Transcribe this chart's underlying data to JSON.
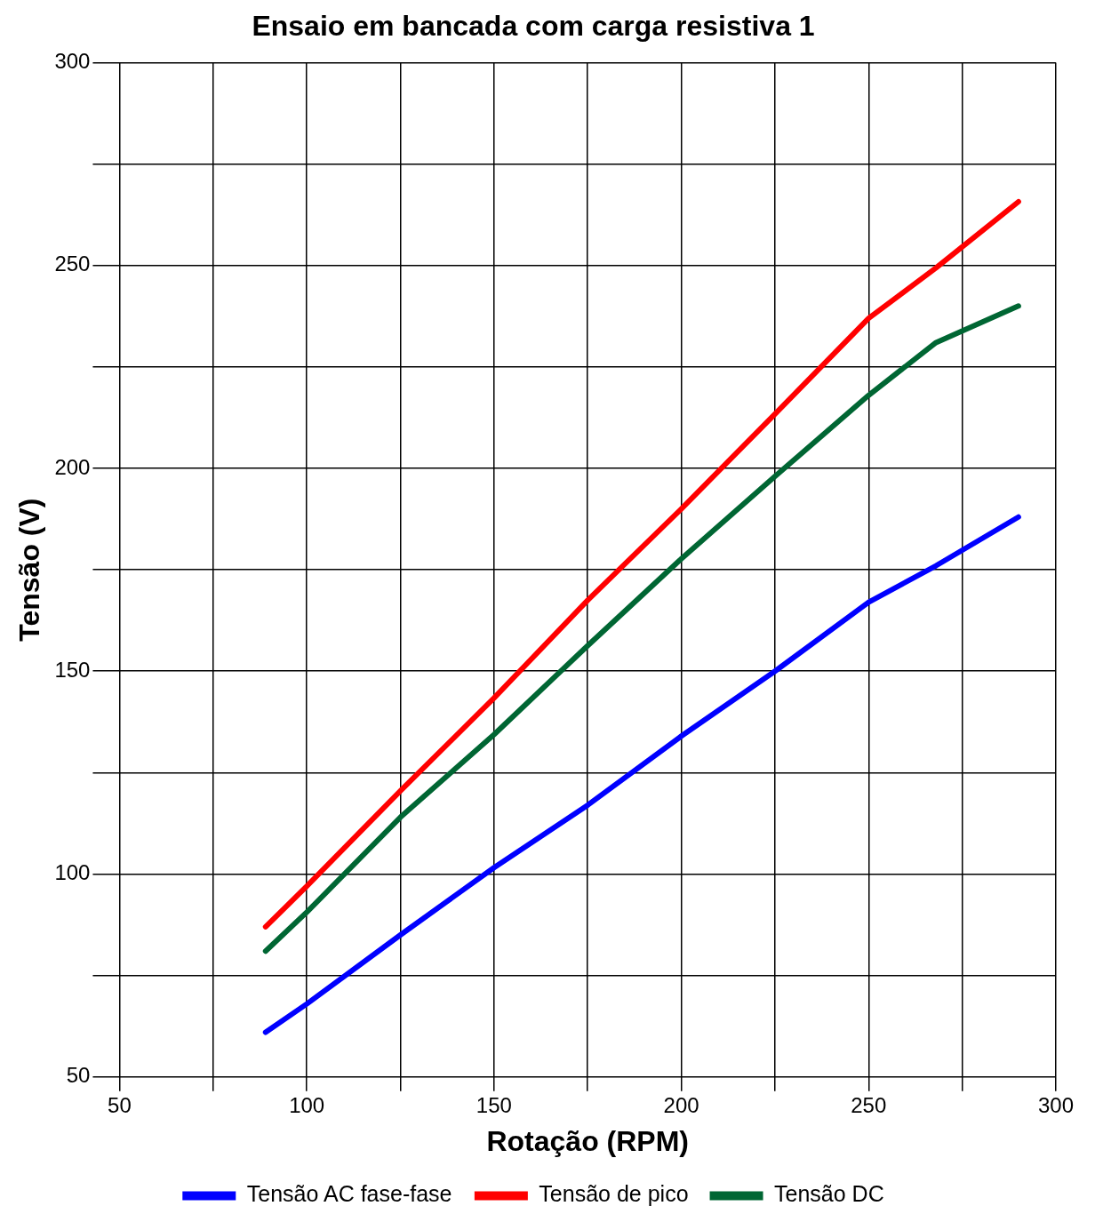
{
  "chart_data": {
    "type": "line",
    "title": "Ensaio em bancada com carga resistiva 1",
    "xlabel": "Rotação (RPM)",
    "ylabel": "Tensão (V)",
    "xlim": [
      50,
      300
    ],
    "xticks": [
      50,
      {
        "value": 75,
        "label": null
      },
      100,
      {
        "value": 125,
        "label": null
      },
      150,
      {
        "value": 175,
        "label": null
      },
      200,
      {
        "value": 225,
        "label": null
      },
      250,
      {
        "value": 275,
        "label": null
      },
      300
    ],
    "ylim": [
      50,
      300
    ],
    "yticks": [
      50,
      {
        "value": 75,
        "label": null
      },
      100,
      {
        "value": 125,
        "label": null
      },
      150,
      {
        "value": 175,
        "label": null
      },
      200,
      {
        "value": 225,
        "label": null
      },
      250,
      {
        "value": 275,
        "label": null
      },
      300
    ],
    "grid": true,
    "legend": "bottom",
    "marker": "none",
    "line_style": "solid",
    "x": [
      89,
      100,
      125,
      150,
      175,
      200,
      225,
      250,
      268,
      290
    ],
    "series": [
      {
        "name": "Tensão AC fase-fase",
        "color": "#0000ff",
        "values": [
          61,
          68,
          85,
          101.6,
          117,
          134,
          150,
          167,
          176,
          188
        ]
      },
      {
        "name": "Tensão de pico",
        "color": "#ff0000",
        "values": [
          87,
          97,
          120.5,
          143.4,
          167.5,
          190,
          213.4,
          237,
          249.4,
          265.7
        ]
      },
      {
        "name": "Tensão DC",
        "color": "#006633",
        "values": [
          81,
          90.6,
          114,
          134.4,
          156.3,
          177.7,
          198,
          218,
          231,
          240
        ]
      }
    ]
  }
}
